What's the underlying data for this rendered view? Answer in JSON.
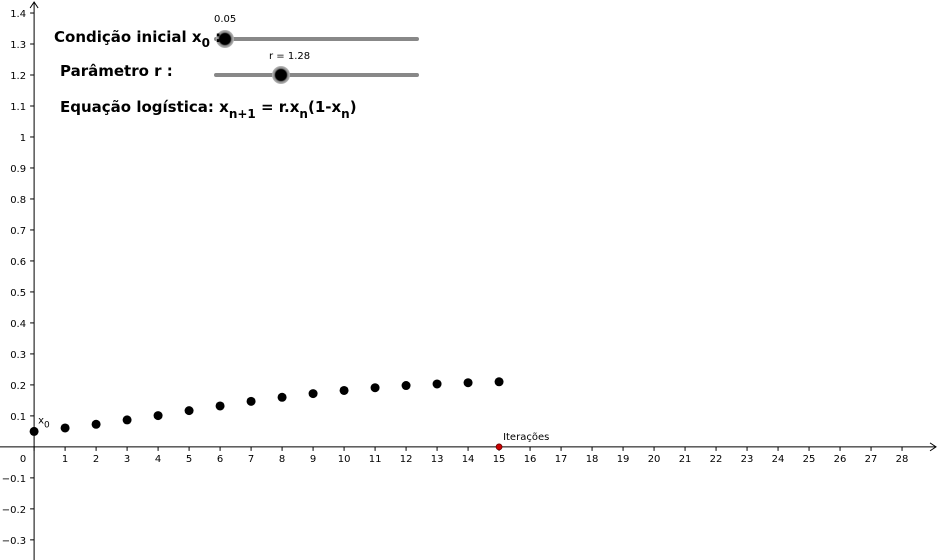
{
  "chart_data": {
    "type": "scatter",
    "x": [
      0,
      1,
      2,
      3,
      4,
      5,
      6,
      7,
      8,
      9,
      10,
      11,
      12,
      13,
      14,
      15
    ],
    "values": [
      0.05,
      0.061,
      0.073,
      0.087,
      0.101,
      0.117,
      0.132,
      0.147,
      0.16,
      0.172,
      0.182,
      0.191,
      0.198,
      0.203,
      0.207,
      0.21
    ],
    "color": "#000000",
    "xlim": [
      -1.1,
      29.16
    ],
    "ylim": [
      -0.365,
      1.442
    ],
    "xticks": [
      0,
      1,
      2,
      3,
      4,
      5,
      6,
      7,
      8,
      9,
      10,
      11,
      12,
      13,
      14,
      15,
      16,
      17,
      18,
      19,
      20,
      21,
      22,
      23,
      24,
      25,
      26,
      27,
      28
    ],
    "yticks": [
      {
        "value": -0.3,
        "label": "−0.3"
      },
      {
        "value": -0.2,
        "label": "−0.2"
      },
      {
        "value": -0.1,
        "label": "−0.1"
      },
      0.1,
      0.2,
      0.3,
      0.4,
      0.5,
      0.6,
      0.7,
      0.8,
      0.9,
      1,
      1.1,
      1.2,
      1.3,
      1.4
    ],
    "grid": false,
    "first_point_label": [
      "x",
      "0"
    ],
    "marker": {
      "label": "Iterações",
      "x": 15,
      "y": 0,
      "color": "#cc0000"
    },
    "sliders": [
      {
        "label": [
          "Condição inicial x",
          "0",
          " :"
        ],
        "value_text": "0.05"
      },
      {
        "label": [
          "Parâmetro r :"
        ],
        "value_text": "r = 1.28"
      }
    ],
    "equation": [
      "Equação logística: x",
      "n+1",
      " = r.x",
      "n",
      "(1-x",
      "n",
      ")"
    ]
  }
}
